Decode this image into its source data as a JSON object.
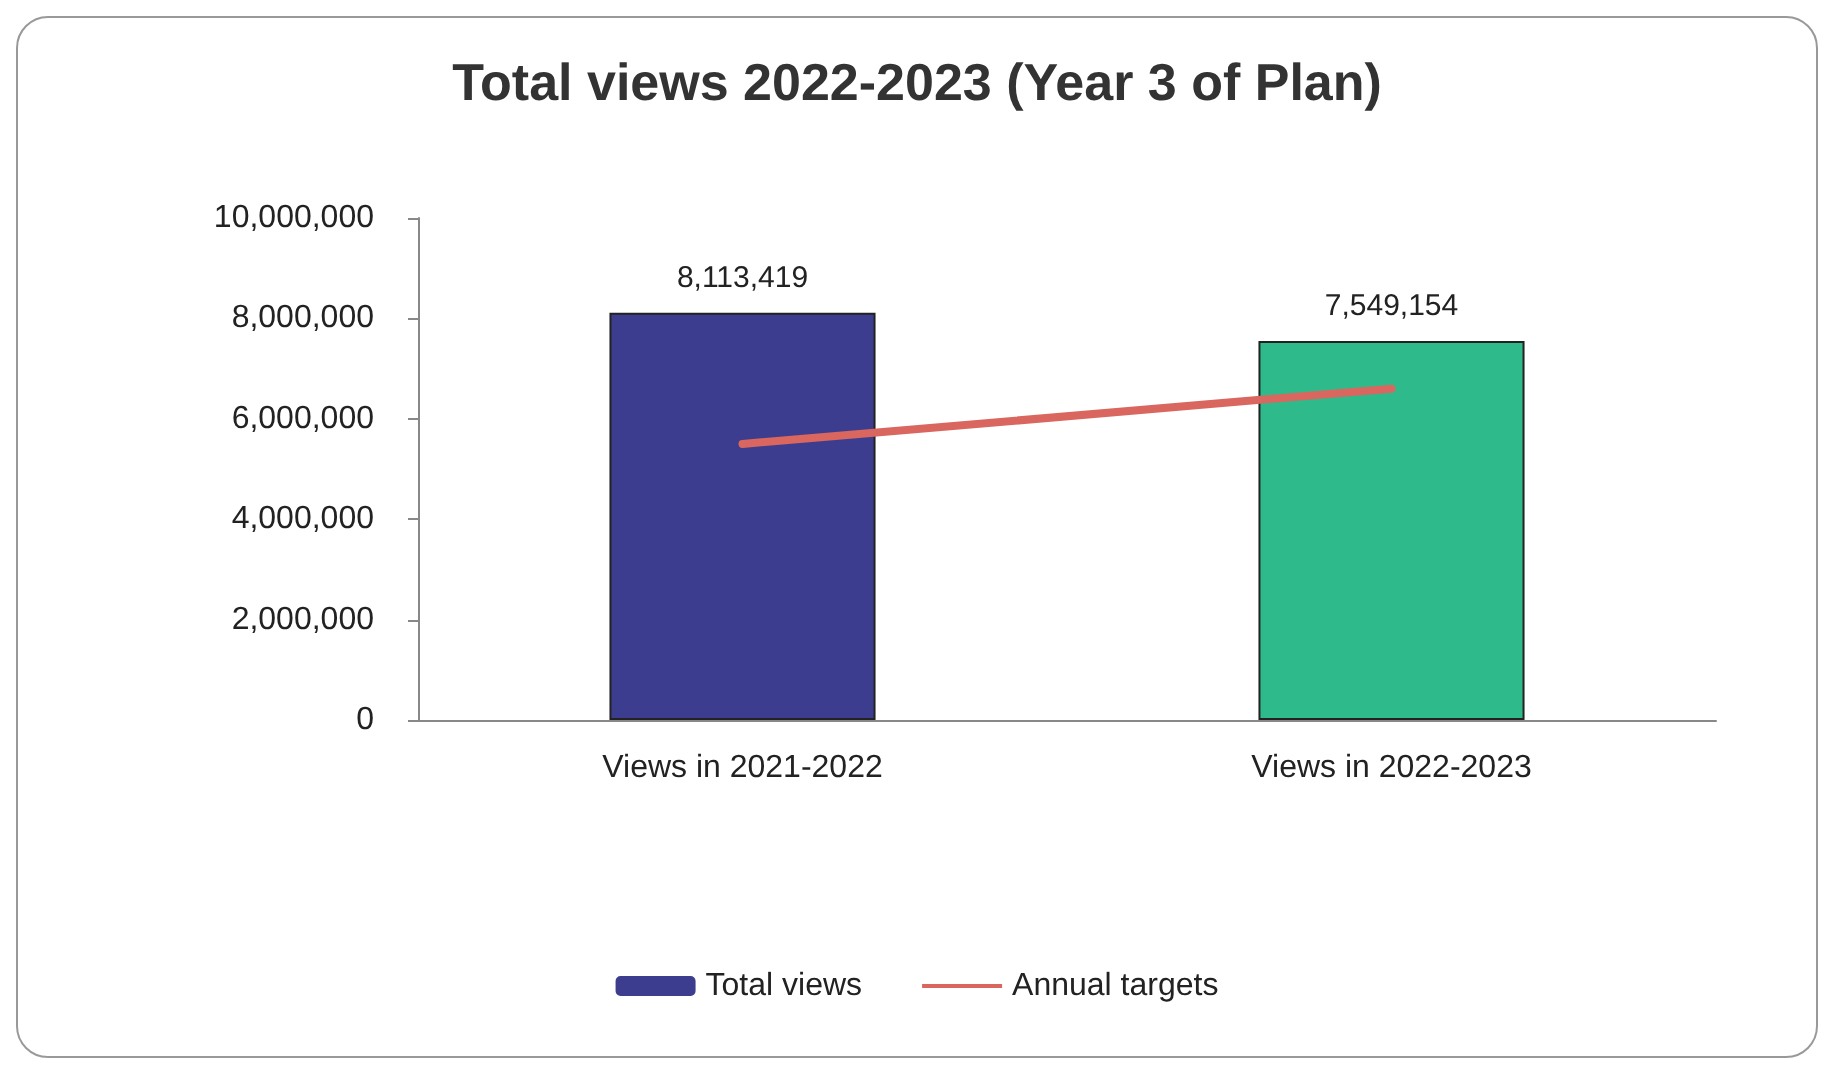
{
  "chart_data": {
    "type": "bar",
    "title": "Total views 2022-2023 (Year 3 of Plan)",
    "categories": [
      "Views in 2021-2022",
      "Views in 2022-2023"
    ],
    "series": [
      {
        "name": "Total views",
        "color": "#3d3d8f",
        "colors": [
          "#3d3d8f",
          "#2fba8c"
        ],
        "values": [
          8113419,
          7549154
        ],
        "value_labels": [
          "8,113,419",
          "7,549,154"
        ]
      },
      {
        "name": "Annual targets",
        "type": "line",
        "color": "#d9675f",
        "values": [
          5500000,
          6600000
        ]
      }
    ],
    "ylim": [
      0,
      10000000
    ],
    "yticks": [
      0,
      {
        "value": 2000000,
        "label": "2,000,000"
      },
      {
        "value": 4000000,
        "label": "4,000,000"
      },
      {
        "value": 6000000,
        "label": "6,000,000"
      },
      {
        "value": 8000000,
        "label": "8,000,000"
      },
      {
        "value": 10000000,
        "label": "10,000,000"
      }
    ],
    "grid": false,
    "legend": "bottom",
    "marker": "none",
    "line_style": "solid"
  }
}
